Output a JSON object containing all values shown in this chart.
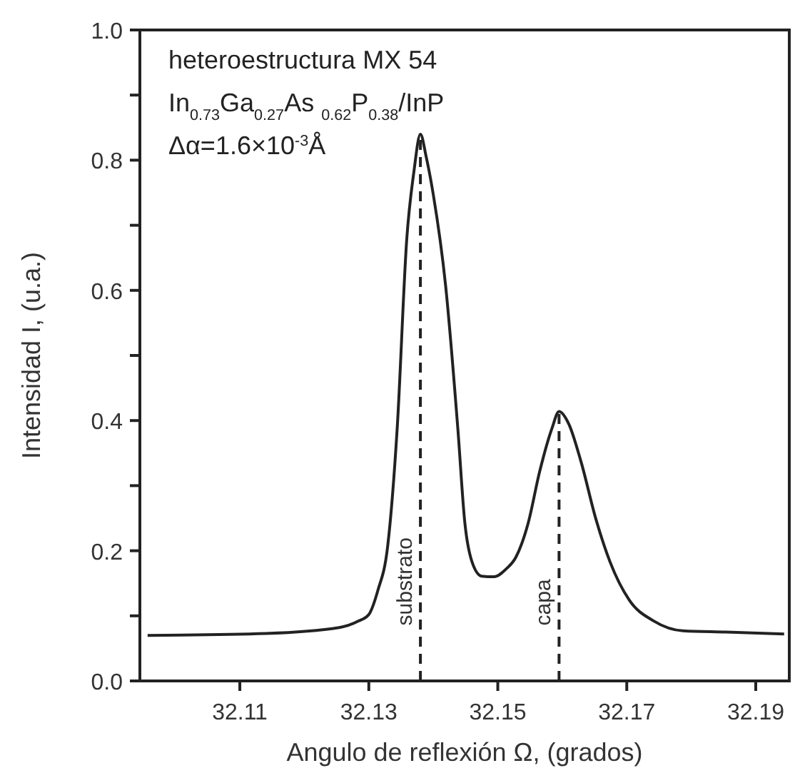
{
  "chart_data": {
    "type": "line",
    "xlabel": "Angulo de reflexión Ω, (grados)",
    "ylabel": "Intensidad I, (u.a.)",
    "annotations": [
      "heteroestructura MX 54",
      "In$_{0.73}$Ga$_{0.27}$As $_{0.62}$P$_{0.38}$/InP",
      "Δα=1.6×10$^{-3}$Å"
    ],
    "series": [
      {
        "color": "#222222",
        "x": [
          32.0957,
          32.1141,
          32.1254,
          32.1284,
          32.13,
          32.1314,
          32.1329,
          32.1344,
          32.1359,
          32.137,
          32.138,
          32.1389,
          32.14,
          32.1419,
          32.1438,
          32.1449,
          32.146,
          32.1475,
          32.1494,
          32.1513,
          32.1528,
          32.1547,
          32.1565,
          32.1584,
          32.1595,
          32.161,
          32.1629,
          32.1652,
          32.1674,
          32.1704,
          32.1742,
          32.1787,
          32.1854,
          32.1944
        ],
        "values": [
          0.07,
          0.073,
          0.082,
          0.092,
          0.102,
          0.139,
          0.205,
          0.388,
          0.681,
          0.783,
          0.84,
          0.805,
          0.747,
          0.608,
          0.388,
          0.242,
          0.183,
          0.161,
          0.16,
          0.172,
          0.19,
          0.242,
          0.322,
          0.388,
          0.414,
          0.395,
          0.337,
          0.249,
          0.183,
          0.124,
          0.092,
          0.077,
          0.075,
          0.072
        ]
      }
    ],
    "ref_lines": [
      {
        "axis": "x",
        "value": 32.138,
        "label": "substrato",
        "line_style": "dashed"
      },
      {
        "axis": "x",
        "value": 32.1595,
        "label": "capa",
        "line_style": "dashed"
      }
    ],
    "xlim": [
      32.0945,
      32.1952
    ],
    "xticks": [
      32.11,
      32.13,
      32.15,
      32.17,
      32.19
    ],
    "ylim": [
      0,
      1.0
    ],
    "yticks": [
      {
        "value": 0,
        "label": "0.0"
      },
      {
        "value": 0.1,
        "label": null
      },
      0.2,
      {
        "value": 0.3,
        "label": null
      },
      0.4,
      {
        "value": 0.5,
        "label": null
      },
      0.6,
      {
        "value": 0.7,
        "label": null
      },
      0.8,
      {
        "value": 0.9,
        "label": null
      },
      {
        "value": 1,
        "label": "1.0"
      }
    ],
    "grid": false,
    "marker": "none",
    "line_style": "solid"
  }
}
